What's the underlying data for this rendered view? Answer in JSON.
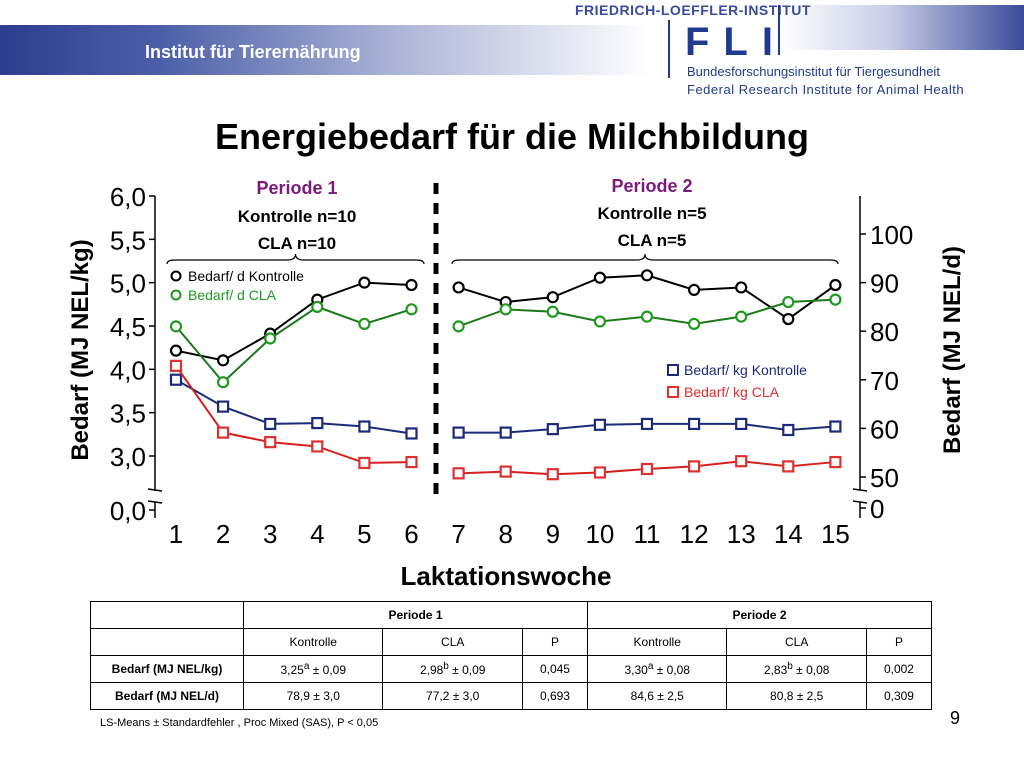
{
  "header": {
    "institute": "Institut für Tierernährung",
    "fli_top": "FRIEDRICH-LOEFFLER-INSTITUT",
    "fli_logo": "FLI",
    "fli_name_de": "Bundesforschungsinstitut für Tiergesundheit",
    "fli_name_en": "Federal Research Institute for Animal Health"
  },
  "title": "Energiebedarf für die Milchbildung",
  "chart_data": {
    "type": "line",
    "xlabel": "Laktationswoche",
    "ylabel_left": "Bedarf (MJ NEL/kg)",
    "ylabel_right": "Bedarf (MJ NEL/d)",
    "x": [
      1,
      2,
      3,
      4,
      5,
      6,
      7,
      8,
      9,
      10,
      11,
      12,
      13,
      14,
      15
    ],
    "left_ticks": [
      "6,0",
      "5,5",
      "5,0",
      "4,5",
      "4,0",
      "3,5",
      "3,0",
      "0,0"
    ],
    "right_ticks": [
      "100",
      "90",
      "80",
      "70",
      "60",
      "50",
      "0"
    ],
    "ylim_left": [
      0,
      6
    ],
    "ylim_right": [
      0,
      105
    ],
    "axis_break": true,
    "periods": [
      {
        "name": "Periode 1",
        "line1": "Kontrolle n=10",
        "line2": "CLA n=10",
        "weeks": [
          1,
          6
        ]
      },
      {
        "name": "Periode 2",
        "line1": "Kontrolle n=5",
        "line2": "CLA n=5",
        "weeks": [
          7,
          15
        ]
      }
    ],
    "legend": {
      "per_day": [
        "Bedarf/ d Kontrolle",
        "Bedarf/ d CLA"
      ],
      "per_kg": [
        "Bedarf/ kg  Kontrolle",
        "Bedarf/ kg CLA"
      ]
    },
    "series": [
      {
        "name": "Bedarf/ d Kontrolle",
        "axis": "right",
        "marker": "circle",
        "color": "#000000",
        "marker_color": "#000000",
        "values": [
          76,
          74,
          79.5,
          86.5,
          90,
          89.5,
          89,
          86,
          87,
          91,
          91.5,
          88.5,
          89,
          82.5,
          89.5
        ]
      },
      {
        "name": "Bedarf/ d CLA",
        "axis": "right",
        "marker": "circle",
        "color": "#1a7a1a",
        "marker_color": "#1f9a1f",
        "values": [
          81,
          69.5,
          78.5,
          85,
          81.5,
          84.5,
          81,
          84.5,
          84,
          82,
          83,
          81.5,
          83,
          86,
          86.5
        ]
      },
      {
        "name": "Bedarf/ kg  Kontrolle",
        "axis": "left",
        "marker": "square",
        "color": "#1c2a7a",
        "marker_color": "#1c2a7a",
        "values": [
          3.88,
          3.57,
          3.37,
          3.38,
          3.34,
          3.26,
          3.27,
          3.27,
          3.31,
          3.36,
          3.37,
          3.37,
          3.37,
          3.3,
          3.34
        ]
      },
      {
        "name": "Bedarf/ kg CLA",
        "axis": "left",
        "marker": "square",
        "color": "#d42020",
        "marker_color": "#e03030",
        "values": [
          4.04,
          3.27,
          3.16,
          3.11,
          2.92,
          2.93,
          2.8,
          2.82,
          2.79,
          2.81,
          2.85,
          2.88,
          2.94,
          2.88,
          2.93
        ]
      }
    ]
  },
  "table": {
    "periods": [
      "Periode 1",
      "Periode 2"
    ],
    "subheaders": [
      "Kontrolle",
      "CLA",
      "P",
      "Kontrolle",
      "CLA",
      "P"
    ],
    "rows": [
      {
        "label": "Bedarf (MJ NEL/kg)",
        "cells": [
          {
            "v": "3,25",
            "sup": "a",
            "e": " ± 0,09"
          },
          {
            "v": "2,98",
            "sup": "b",
            "e": " ± 0,09"
          },
          {
            "v": "0,045",
            "sup": "",
            "e": ""
          },
          {
            "v": "3,30",
            "sup": "a",
            "e": " ± 0,08"
          },
          {
            "v": "2,83",
            "sup": "b",
            "e": " ± 0,08"
          },
          {
            "v": "0,002",
            "sup": "",
            "e": ""
          }
        ]
      },
      {
        "label": "Bedarf (MJ NEL/d)",
        "cells": [
          {
            "v": "78,9 ± 3,0",
            "sup": "",
            "e": ""
          },
          {
            "v": "77,2 ± 3,0",
            "sup": "",
            "e": ""
          },
          {
            "v": "0,693",
            "sup": "",
            "e": ""
          },
          {
            "v": "84,6 ± 2,5",
            "sup": "",
            "e": ""
          },
          {
            "v": "80,8 ± 2,5",
            "sup": "",
            "e": ""
          },
          {
            "v": "0,309",
            "sup": "",
            "e": ""
          }
        ]
      }
    ]
  },
  "footnote": "LS-Means ± Standardfehler , Proc Mixed  (SAS),  P < 0,05",
  "page_number": "9"
}
